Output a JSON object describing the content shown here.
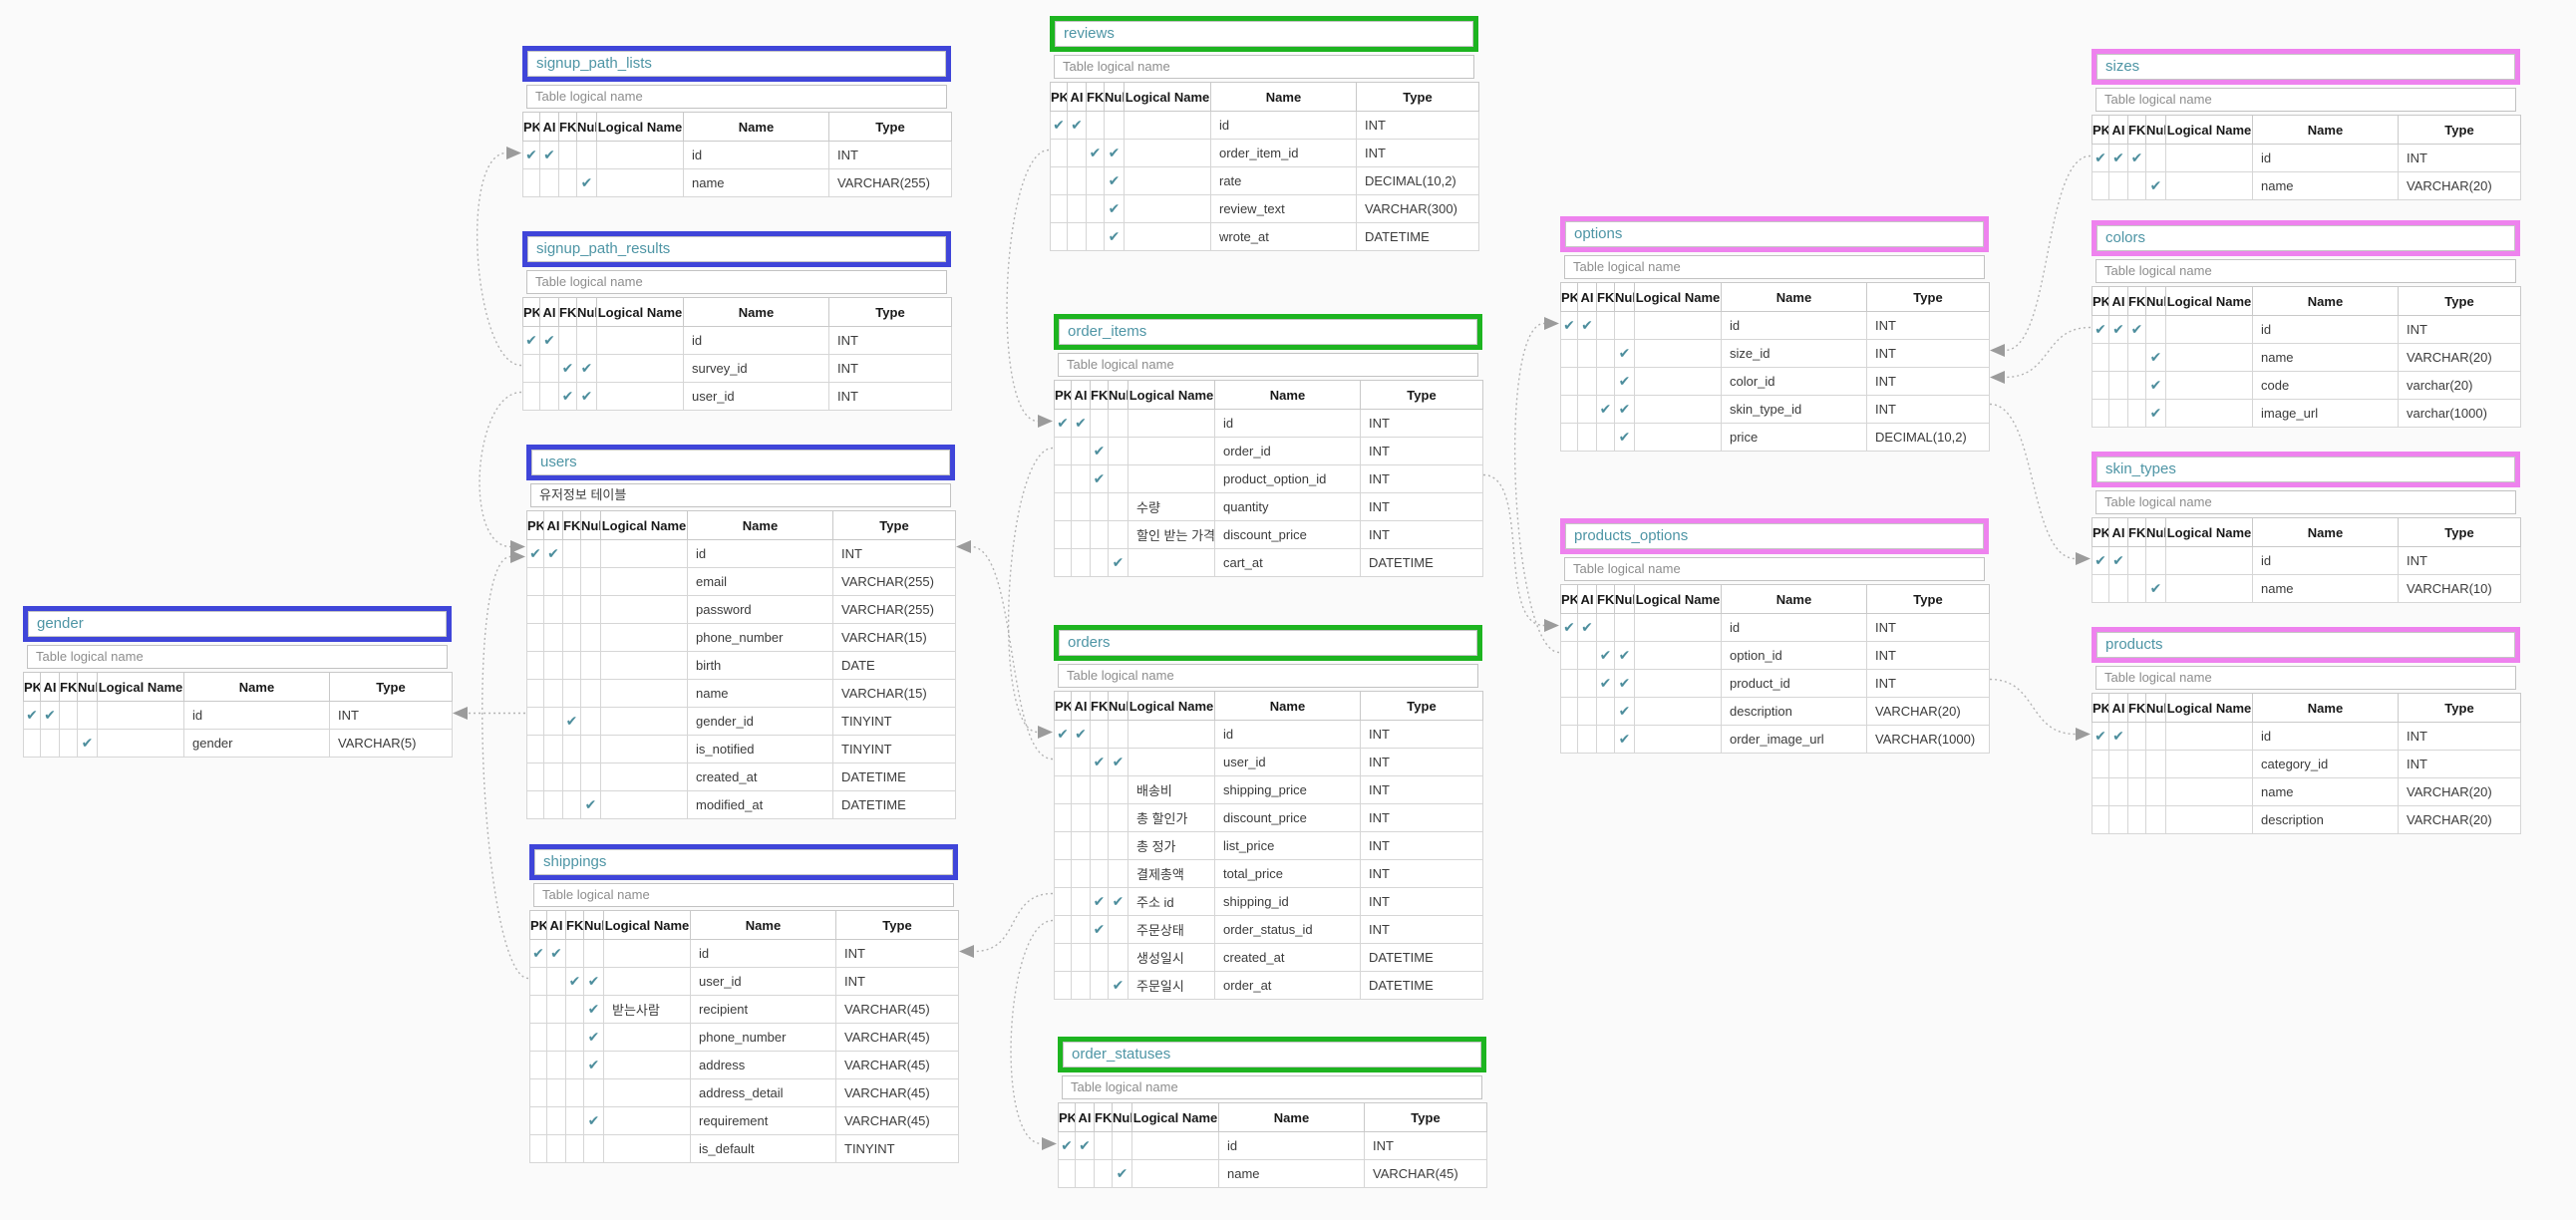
{
  "labels": {
    "headers": [
      "PK",
      "AI",
      "FK",
      "Null",
      "Logical Name",
      "Name",
      "Type"
    ],
    "logical_placeholder": "Table logical name",
    "check_glyph": "✔"
  },
  "palette": {
    "blue": "#3f45d9",
    "green": "#1db420",
    "pink": "#ee82ee",
    "title_text": "#4e95a5",
    "check": "#4d8e9d",
    "line": "#b3b3b3",
    "arrow": "#9b9b9b",
    "canvas_bg": "#fafafa"
  },
  "tables": [
    {
      "name": "gender",
      "color": "blue",
      "logical": "",
      "columns": [
        {
          "pk": true,
          "ai": true,
          "fk": false,
          "null": false,
          "logical": "",
          "name": "id",
          "type": "INT"
        },
        {
          "pk": false,
          "ai": false,
          "fk": false,
          "null": true,
          "logical": "",
          "name": "gender",
          "type": "VARCHAR(5)"
        }
      ]
    },
    {
      "name": "signup_path_lists",
      "color": "blue",
      "logical": "",
      "columns": [
        {
          "pk": true,
          "ai": true,
          "fk": false,
          "null": false,
          "logical": "",
          "name": "id",
          "type": "INT"
        },
        {
          "pk": false,
          "ai": false,
          "fk": false,
          "null": true,
          "logical": "",
          "name": "name",
          "type": "VARCHAR(255)"
        }
      ]
    },
    {
      "name": "signup_path_results",
      "color": "blue",
      "logical": "",
      "columns": [
        {
          "pk": true,
          "ai": true,
          "fk": false,
          "null": false,
          "logical": "",
          "name": "id",
          "type": "INT"
        },
        {
          "pk": false,
          "ai": false,
          "fk": true,
          "null": true,
          "logical": "",
          "name": "survey_id",
          "type": "INT"
        },
        {
          "pk": false,
          "ai": false,
          "fk": true,
          "null": true,
          "logical": "",
          "name": "user_id",
          "type": "INT"
        }
      ]
    },
    {
      "name": "users",
      "color": "blue",
      "logical": "유저정보 테이블",
      "columns": [
        {
          "pk": true,
          "ai": true,
          "fk": false,
          "null": false,
          "logical": "",
          "name": "id",
          "type": "INT"
        },
        {
          "pk": false,
          "ai": false,
          "fk": false,
          "null": false,
          "logical": "",
          "name": "email",
          "type": "VARCHAR(255)"
        },
        {
          "pk": false,
          "ai": false,
          "fk": false,
          "null": false,
          "logical": "",
          "name": "password",
          "type": "VARCHAR(255)"
        },
        {
          "pk": false,
          "ai": false,
          "fk": false,
          "null": false,
          "logical": "",
          "name": "phone_number",
          "type": "VARCHAR(15)"
        },
        {
          "pk": false,
          "ai": false,
          "fk": false,
          "null": false,
          "logical": "",
          "name": "birth",
          "type": "DATE"
        },
        {
          "pk": false,
          "ai": false,
          "fk": false,
          "null": false,
          "logical": "",
          "name": "name",
          "type": "VARCHAR(15)"
        },
        {
          "pk": false,
          "ai": false,
          "fk": true,
          "null": false,
          "logical": "",
          "name": "gender_id",
          "type": "TINYINT"
        },
        {
          "pk": false,
          "ai": false,
          "fk": false,
          "null": false,
          "logical": "",
          "name": "is_notified",
          "type": "TINYINT"
        },
        {
          "pk": false,
          "ai": false,
          "fk": false,
          "null": false,
          "logical": "",
          "name": "created_at",
          "type": "DATETIME"
        },
        {
          "pk": false,
          "ai": false,
          "fk": false,
          "null": true,
          "logical": "",
          "name": "modified_at",
          "type": "DATETIME"
        }
      ]
    },
    {
      "name": "shippings",
      "color": "blue",
      "logical": "",
      "columns": [
        {
          "pk": true,
          "ai": true,
          "fk": false,
          "null": false,
          "logical": "",
          "name": "id",
          "type": "INT"
        },
        {
          "pk": false,
          "ai": false,
          "fk": true,
          "null": true,
          "logical": "",
          "name": "user_id",
          "type": "INT"
        },
        {
          "pk": false,
          "ai": false,
          "fk": false,
          "null": true,
          "logical": "받는사람",
          "name": "recipient",
          "type": "VARCHAR(45)"
        },
        {
          "pk": false,
          "ai": false,
          "fk": false,
          "null": true,
          "logical": "",
          "name": "phone_number",
          "type": "VARCHAR(45)"
        },
        {
          "pk": false,
          "ai": false,
          "fk": false,
          "null": true,
          "logical": "",
          "name": "address",
          "type": "VARCHAR(45)"
        },
        {
          "pk": false,
          "ai": false,
          "fk": false,
          "null": false,
          "logical": "",
          "name": "address_detail",
          "type": "VARCHAR(45)"
        },
        {
          "pk": false,
          "ai": false,
          "fk": false,
          "null": true,
          "logical": "",
          "name": "requirement",
          "type": "VARCHAR(45)"
        },
        {
          "pk": false,
          "ai": false,
          "fk": false,
          "null": false,
          "logical": "",
          "name": "is_default",
          "type": "TINYINT"
        }
      ]
    },
    {
      "name": "reviews",
      "color": "green",
      "logical": "",
      "columns": [
        {
          "pk": true,
          "ai": true,
          "fk": false,
          "null": false,
          "logical": "",
          "name": "id",
          "type": "INT"
        },
        {
          "pk": false,
          "ai": false,
          "fk": true,
          "null": true,
          "logical": "",
          "name": "order_item_id",
          "type": "INT"
        },
        {
          "pk": false,
          "ai": false,
          "fk": false,
          "null": true,
          "logical": "",
          "name": "rate",
          "type": "DECIMAL(10,2)"
        },
        {
          "pk": false,
          "ai": false,
          "fk": false,
          "null": true,
          "logical": "",
          "name": "review_text",
          "type": "VARCHAR(300)"
        },
        {
          "pk": false,
          "ai": false,
          "fk": false,
          "null": true,
          "logical": "",
          "name": "wrote_at",
          "type": "DATETIME"
        }
      ]
    },
    {
      "name": "order_items",
      "color": "green",
      "logical": "",
      "columns": [
        {
          "pk": true,
          "ai": true,
          "fk": false,
          "null": false,
          "logical": "",
          "name": "id",
          "type": "INT"
        },
        {
          "pk": false,
          "ai": false,
          "fk": true,
          "null": false,
          "logical": "",
          "name": "order_id",
          "type": "INT"
        },
        {
          "pk": false,
          "ai": false,
          "fk": true,
          "null": false,
          "logical": "",
          "name": "product_option_id",
          "type": "INT"
        },
        {
          "pk": false,
          "ai": false,
          "fk": false,
          "null": false,
          "logical": "수량",
          "name": "quantity",
          "type": "INT"
        },
        {
          "pk": false,
          "ai": false,
          "fk": false,
          "null": false,
          "logical": "할인 받는 가격",
          "name": "discount_price",
          "type": "INT"
        },
        {
          "pk": false,
          "ai": false,
          "fk": false,
          "null": true,
          "logical": "",
          "name": "cart_at",
          "type": "DATETIME"
        }
      ]
    },
    {
      "name": "orders",
      "color": "green",
      "logical": "",
      "columns": [
        {
          "pk": true,
          "ai": true,
          "fk": false,
          "null": false,
          "logical": "",
          "name": "id",
          "type": "INT"
        },
        {
          "pk": false,
          "ai": false,
          "fk": true,
          "null": true,
          "logical": "",
          "name": "user_id",
          "type": "INT"
        },
        {
          "pk": false,
          "ai": false,
          "fk": false,
          "null": false,
          "logical": "배송비",
          "name": "shipping_price",
          "type": "INT"
        },
        {
          "pk": false,
          "ai": false,
          "fk": false,
          "null": false,
          "logical": "총 할인가",
          "name": "discount_price",
          "type": "INT"
        },
        {
          "pk": false,
          "ai": false,
          "fk": false,
          "null": false,
          "logical": "총 정가",
          "name": "list_price",
          "type": "INT"
        },
        {
          "pk": false,
          "ai": false,
          "fk": false,
          "null": false,
          "logical": "결제총액",
          "name": "total_price",
          "type": "INT"
        },
        {
          "pk": false,
          "ai": false,
          "fk": true,
          "null": true,
          "logical": "주소 id",
          "name": "shipping_id",
          "type": "INT"
        },
        {
          "pk": false,
          "ai": false,
          "fk": true,
          "null": false,
          "logical": "주문상태",
          "name": "order_status_id",
          "type": "INT"
        },
        {
          "pk": false,
          "ai": false,
          "fk": false,
          "null": false,
          "logical": "생성일시",
          "name": "created_at",
          "type": "DATETIME"
        },
        {
          "pk": false,
          "ai": false,
          "fk": false,
          "null": true,
          "logical": "주문일시",
          "name": "order_at",
          "type": "DATETIME"
        }
      ]
    },
    {
      "name": "order_statuses",
      "color": "green",
      "logical": "",
      "columns": [
        {
          "pk": true,
          "ai": true,
          "fk": false,
          "null": false,
          "logical": "",
          "name": "id",
          "type": "INT"
        },
        {
          "pk": false,
          "ai": false,
          "fk": false,
          "null": true,
          "logical": "",
          "name": "name",
          "type": "VARCHAR(45)"
        }
      ]
    },
    {
      "name": "options",
      "color": "pink",
      "logical": "",
      "columns": [
        {
          "pk": true,
          "ai": true,
          "fk": false,
          "null": false,
          "logical": "",
          "name": "id",
          "type": "INT"
        },
        {
          "pk": false,
          "ai": false,
          "fk": false,
          "null": true,
          "logical": "",
          "name": "size_id",
          "type": "INT"
        },
        {
          "pk": false,
          "ai": false,
          "fk": false,
          "null": true,
          "logical": "",
          "name": "color_id",
          "type": "INT"
        },
        {
          "pk": false,
          "ai": false,
          "fk": true,
          "null": true,
          "logical": "",
          "name": "skin_type_id",
          "type": "INT"
        },
        {
          "pk": false,
          "ai": false,
          "fk": false,
          "null": true,
          "logical": "",
          "name": "price",
          "type": "DECIMAL(10,2)"
        }
      ]
    },
    {
      "name": "products_options",
      "color": "pink",
      "logical": "",
      "columns": [
        {
          "pk": true,
          "ai": true,
          "fk": false,
          "null": false,
          "logical": "",
          "name": "id",
          "type": "INT"
        },
        {
          "pk": false,
          "ai": false,
          "fk": true,
          "null": true,
          "logical": "",
          "name": "option_id",
          "type": "INT"
        },
        {
          "pk": false,
          "ai": false,
          "fk": true,
          "null": true,
          "logical": "",
          "name": "product_id",
          "type": "INT"
        },
        {
          "pk": false,
          "ai": false,
          "fk": false,
          "null": true,
          "logical": "",
          "name": "description",
          "type": "VARCHAR(20)"
        },
        {
          "pk": false,
          "ai": false,
          "fk": false,
          "null": true,
          "logical": "",
          "name": "order_image_url",
          "type": "VARCHAR(1000)"
        }
      ]
    },
    {
      "name": "sizes",
      "color": "pink",
      "logical": "",
      "columns": [
        {
          "pk": true,
          "ai": true,
          "fk": true,
          "null": false,
          "logical": "",
          "name": "id",
          "type": "INT"
        },
        {
          "pk": false,
          "ai": false,
          "fk": false,
          "null": true,
          "logical": "",
          "name": "name",
          "type": "VARCHAR(20)"
        }
      ]
    },
    {
      "name": "colors",
      "color": "pink",
      "logical": "",
      "columns": [
        {
          "pk": true,
          "ai": true,
          "fk": true,
          "null": false,
          "logical": "",
          "name": "id",
          "type": "INT"
        },
        {
          "pk": false,
          "ai": false,
          "fk": false,
          "null": true,
          "logical": "",
          "name": "name",
          "type": "VARCHAR(20)"
        },
        {
          "pk": false,
          "ai": false,
          "fk": false,
          "null": true,
          "logical": "",
          "name": "code",
          "type": "varchar(20)"
        },
        {
          "pk": false,
          "ai": false,
          "fk": false,
          "null": true,
          "logical": "",
          "name": "image_url",
          "type": "varchar(1000)"
        }
      ]
    },
    {
      "name": "skin_types",
      "color": "pink",
      "logical": "",
      "columns": [
        {
          "pk": true,
          "ai": true,
          "fk": false,
          "null": false,
          "logical": "",
          "name": "id",
          "type": "INT"
        },
        {
          "pk": false,
          "ai": false,
          "fk": false,
          "null": true,
          "logical": "",
          "name": "name",
          "type": "VARCHAR(10)"
        }
      ]
    },
    {
      "name": "products",
      "color": "pink",
      "logical": "",
      "columns": [
        {
          "pk": true,
          "ai": true,
          "fk": false,
          "null": false,
          "logical": "",
          "name": "id",
          "type": "INT"
        },
        {
          "pk": false,
          "ai": false,
          "fk": false,
          "null": false,
          "logical": "",
          "name": "category_id",
          "type": "INT"
        },
        {
          "pk": false,
          "ai": false,
          "fk": false,
          "null": false,
          "logical": "",
          "name": "name",
          "type": "VARCHAR(20)"
        },
        {
          "pk": false,
          "ai": false,
          "fk": false,
          "null": false,
          "logical": "",
          "name": "description",
          "type": "VARCHAR(20)"
        }
      ]
    }
  ],
  "relationships": [
    {
      "from": "signup_path_results.survey_id",
      "to": "signup_path_lists.id"
    },
    {
      "from": "signup_path_results.user_id",
      "to": "users.id"
    },
    {
      "from": "shippings.user_id",
      "to": "users.id"
    },
    {
      "from": "orders.user_id",
      "to": "users.id"
    },
    {
      "from": "users.gender_id",
      "to": "gender.id"
    },
    {
      "from": "orders.shipping_id",
      "to": "shippings.id"
    },
    {
      "from": "reviews.order_item_id",
      "to": "order_items.id"
    },
    {
      "from": "order_items.order_id",
      "to": "orders.id"
    },
    {
      "from": "orders.order_status_id",
      "to": "order_statuses.id"
    },
    {
      "from": "order_items.product_option_id",
      "to": "products_options.id"
    },
    {
      "from": "products_options.option_id",
      "to": "options.id"
    },
    {
      "from": "sizes.id",
      "to": "options.size_id"
    },
    {
      "from": "colors.id",
      "to": "options.color_id"
    },
    {
      "from": "options.skin_type_id",
      "to": "skin_types.id"
    },
    {
      "from": "products_options.product_id",
      "to": "products.id"
    }
  ]
}
